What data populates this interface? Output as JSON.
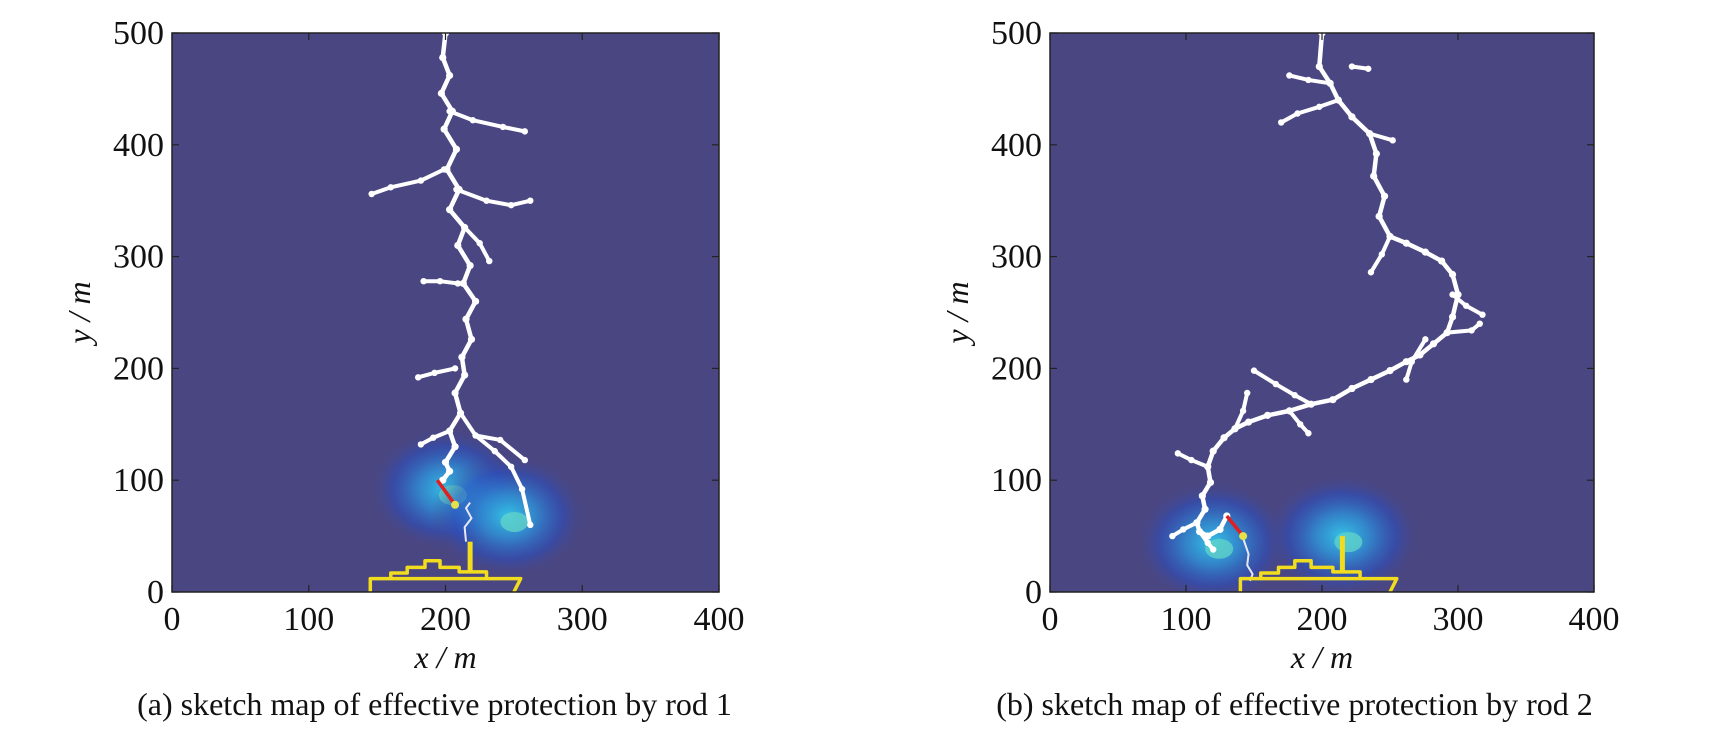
{
  "figure": {
    "panels": [
      {
        "caption": "(a) sketch map of effective protection by rod 1"
      },
      {
        "caption": "(b) sketch map of effective protection by rod 2"
      }
    ]
  },
  "colors": {
    "field_background": "#4a4682",
    "field_glow": "#2f8fd6",
    "hot_core": "#e6e14a",
    "channel": "#ffffff",
    "ship_outline": "#f2dc1e",
    "strike_segment": "#e02020"
  },
  "chart_data": [
    {
      "type": "scatter",
      "title": "",
      "xlabel": "x / m",
      "ylabel": "y / m",
      "xlim": [
        0,
        400
      ],
      "ylim": [
        0,
        500
      ],
      "xticks": [
        0,
        100,
        200,
        300,
        400
      ],
      "yticks": [
        0,
        100,
        200,
        300,
        400,
        500
      ],
      "grid": false,
      "series": [
        {
          "role": "leader_trunk",
          "x": [
            200,
            198,
            203,
            197,
            205,
            199,
            208,
            201,
            210,
            203,
            214,
            209,
            218,
            213,
            222,
            215,
            219,
            212,
            214,
            207,
            211,
            203,
            207,
            200,
            203,
            198
          ],
          "y": [
            500,
            478,
            462,
            446,
            430,
            414,
            396,
            378,
            360,
            342,
            326,
            310,
            292,
            276,
            260,
            244,
            226,
            210,
            194,
            178,
            160,
            144,
            130,
            116,
            108,
            100
          ]
        },
        {
          "role": "branches",
          "segments": [
            [
              [
                203,
                430
              ],
              [
                220,
                422
              ],
              [
                242,
                416
              ],
              [
                258,
                412
              ]
            ],
            [
              [
                199,
                378
              ],
              [
                182,
                368
              ],
              [
                160,
                362
              ],
              [
                146,
                356
              ]
            ],
            [
              [
                208,
                360
              ],
              [
                230,
                350
              ],
              [
                248,
                346
              ],
              [
                262,
                350
              ]
            ],
            [
              [
                214,
                326
              ],
              [
                225,
                312
              ],
              [
                232,
                296
              ]
            ],
            [
              [
                209,
                276
              ],
              [
                196,
                278
              ],
              [
                184,
                278
              ]
            ],
            [
              [
                207,
                200
              ],
              [
                192,
                196
              ],
              [
                180,
                192
              ]
            ],
            [
              [
                211,
                160
              ],
              [
                222,
                140
              ],
              [
                236,
                126
              ],
              [
                248,
                112
              ],
              [
                256,
                92
              ],
              [
                262,
                60
              ]
            ],
            [
              [
                222,
                140
              ],
              [
                240,
                136
              ],
              [
                258,
                118
              ]
            ],
            [
              [
                203,
                144
              ],
              [
                191,
                138
              ],
              [
                182,
                132
              ]
            ]
          ]
        },
        {
          "role": "upward_leader",
          "x": [
            215,
            214,
            219,
            215,
            218
          ],
          "y": [
            45,
            58,
            66,
            75,
            80
          ]
        },
        {
          "role": "strike_segment",
          "x": [
            194,
            207
          ],
          "y": [
            100,
            78
          ]
        },
        {
          "role": "field_glow",
          "centers": [
            [
              201,
              92
            ],
            [
              246,
              68
            ]
          ]
        },
        {
          "role": "ship_outline",
          "hull": [
            [
              145,
              0
            ],
            [
              145,
              12
            ],
            [
              255,
              12
            ],
            [
              250,
              0
            ]
          ],
          "superstructure": [
            [
              160,
              12
            ],
            [
              160,
              17
            ],
            [
              172,
              17
            ],
            [
              172,
              22
            ],
            [
              185,
              22
            ],
            [
              185,
              28
            ],
            [
              196,
              28
            ],
            [
              196,
              22
            ],
            [
              210,
              22
            ],
            [
              210,
              18
            ],
            [
              230,
              18
            ],
            [
              230,
              12
            ]
          ],
          "mast": [
            [
              218,
              18
            ],
            [
              218,
              45
            ]
          ]
        }
      ]
    },
    {
      "type": "scatter",
      "title": "",
      "xlabel": "x / m",
      "ylabel": "y / m",
      "xlim": [
        0,
        400
      ],
      "ylim": [
        0,
        500
      ],
      "xticks": [
        0,
        100,
        200,
        300,
        400
      ],
      "yticks": [
        0,
        100,
        200,
        300,
        400,
        500
      ],
      "grid": false,
      "series": [
        {
          "role": "leader_trunk",
          "x": [
            200,
            198,
            206,
            212,
            222,
            235,
            240,
            238,
            246,
            242,
            250,
            262,
            276,
            288,
            296,
            300,
            296,
            292,
            282,
            272,
            262,
            250,
            236,
            222,
            208,
            192,
            176,
            160,
            146,
            136,
            128,
            120,
            116,
            118,
            112,
            114,
            108,
            110,
            116,
            125,
            130
          ],
          "y": [
            500,
            470,
            455,
            440,
            425,
            410,
            392,
            372,
            354,
            336,
            318,
            312,
            304,
            296,
            284,
            266,
            246,
            232,
            222,
            212,
            206,
            198,
            190,
            182,
            172,
            168,
            162,
            158,
            152,
            146,
            138,
            126,
            112,
            98,
            86,
            74,
            62,
            54,
            50,
            56,
            68
          ]
        },
        {
          "role": "branches",
          "segments": [
            [
              [
                206,
                455
              ],
              [
                190,
                458
              ],
              [
                176,
                462
              ]
            ],
            [
              [
                212,
                440
              ],
              [
                198,
                434
              ],
              [
                182,
                428
              ],
              [
                170,
                420
              ]
            ],
            [
              [
                222,
                470
              ],
              [
                234,
                468
              ]
            ],
            [
              [
                235,
                410
              ],
              [
                252,
                404
              ]
            ],
            [
              [
                250,
                318
              ],
              [
                244,
                302
              ],
              [
                236,
                286
              ]
            ],
            [
              [
                296,
                266
              ],
              [
                306,
                256
              ],
              [
                318,
                248
              ]
            ],
            [
              [
                292,
                232
              ],
              [
                310,
                234
              ],
              [
                316,
                240
              ]
            ],
            [
              [
                276,
                226
              ],
              [
                266,
                206
              ],
              [
                262,
                190
              ]
            ],
            [
              [
                192,
                168
              ],
              [
                180,
                176
              ],
              [
                166,
                186
              ],
              [
                150,
                198
              ]
            ],
            [
              [
                176,
                162
              ],
              [
                184,
                150
              ],
              [
                190,
                142
              ]
            ],
            [
              [
                136,
                146
              ],
              [
                142,
                162
              ],
              [
                145,
                178
              ]
            ],
            [
              [
                116,
                112
              ],
              [
                104,
                118
              ],
              [
                94,
                124
              ]
            ],
            [
              [
                108,
                62
              ],
              [
                98,
                56
              ],
              [
                90,
                50
              ]
            ],
            [
              [
                110,
                54
              ],
              [
                116,
                44
              ],
              [
                120,
                38
              ]
            ]
          ]
        },
        {
          "role": "upward_leader",
          "x": [
            142,
            146,
            145,
            149,
            147
          ],
          "y": [
            48,
            34,
            24,
            16,
            10
          ]
        },
        {
          "role": "strike_segment",
          "x": [
            130,
            142
          ],
          "y": [
            68,
            50
          ]
        },
        {
          "role": "field_glow",
          "centers": [
            [
              120,
              44
            ],
            [
              215,
              50
            ]
          ]
        },
        {
          "role": "ship_outline",
          "hull": [
            [
              140,
              0
            ],
            [
              140,
              12
            ],
            [
              255,
              12
            ],
            [
              250,
              0
            ]
          ],
          "superstructure": [
            [
              155,
              12
            ],
            [
              155,
              17
            ],
            [
              168,
              17
            ],
            [
              168,
              22
            ],
            [
              180,
              22
            ],
            [
              180,
              28
            ],
            [
              192,
              28
            ],
            [
              192,
              22
            ],
            [
              208,
              22
            ],
            [
              208,
              18
            ],
            [
              228,
              18
            ],
            [
              228,
              12
            ]
          ],
          "mast": [
            [
              215,
              18
            ],
            [
              215,
              50
            ]
          ]
        }
      ]
    }
  ]
}
